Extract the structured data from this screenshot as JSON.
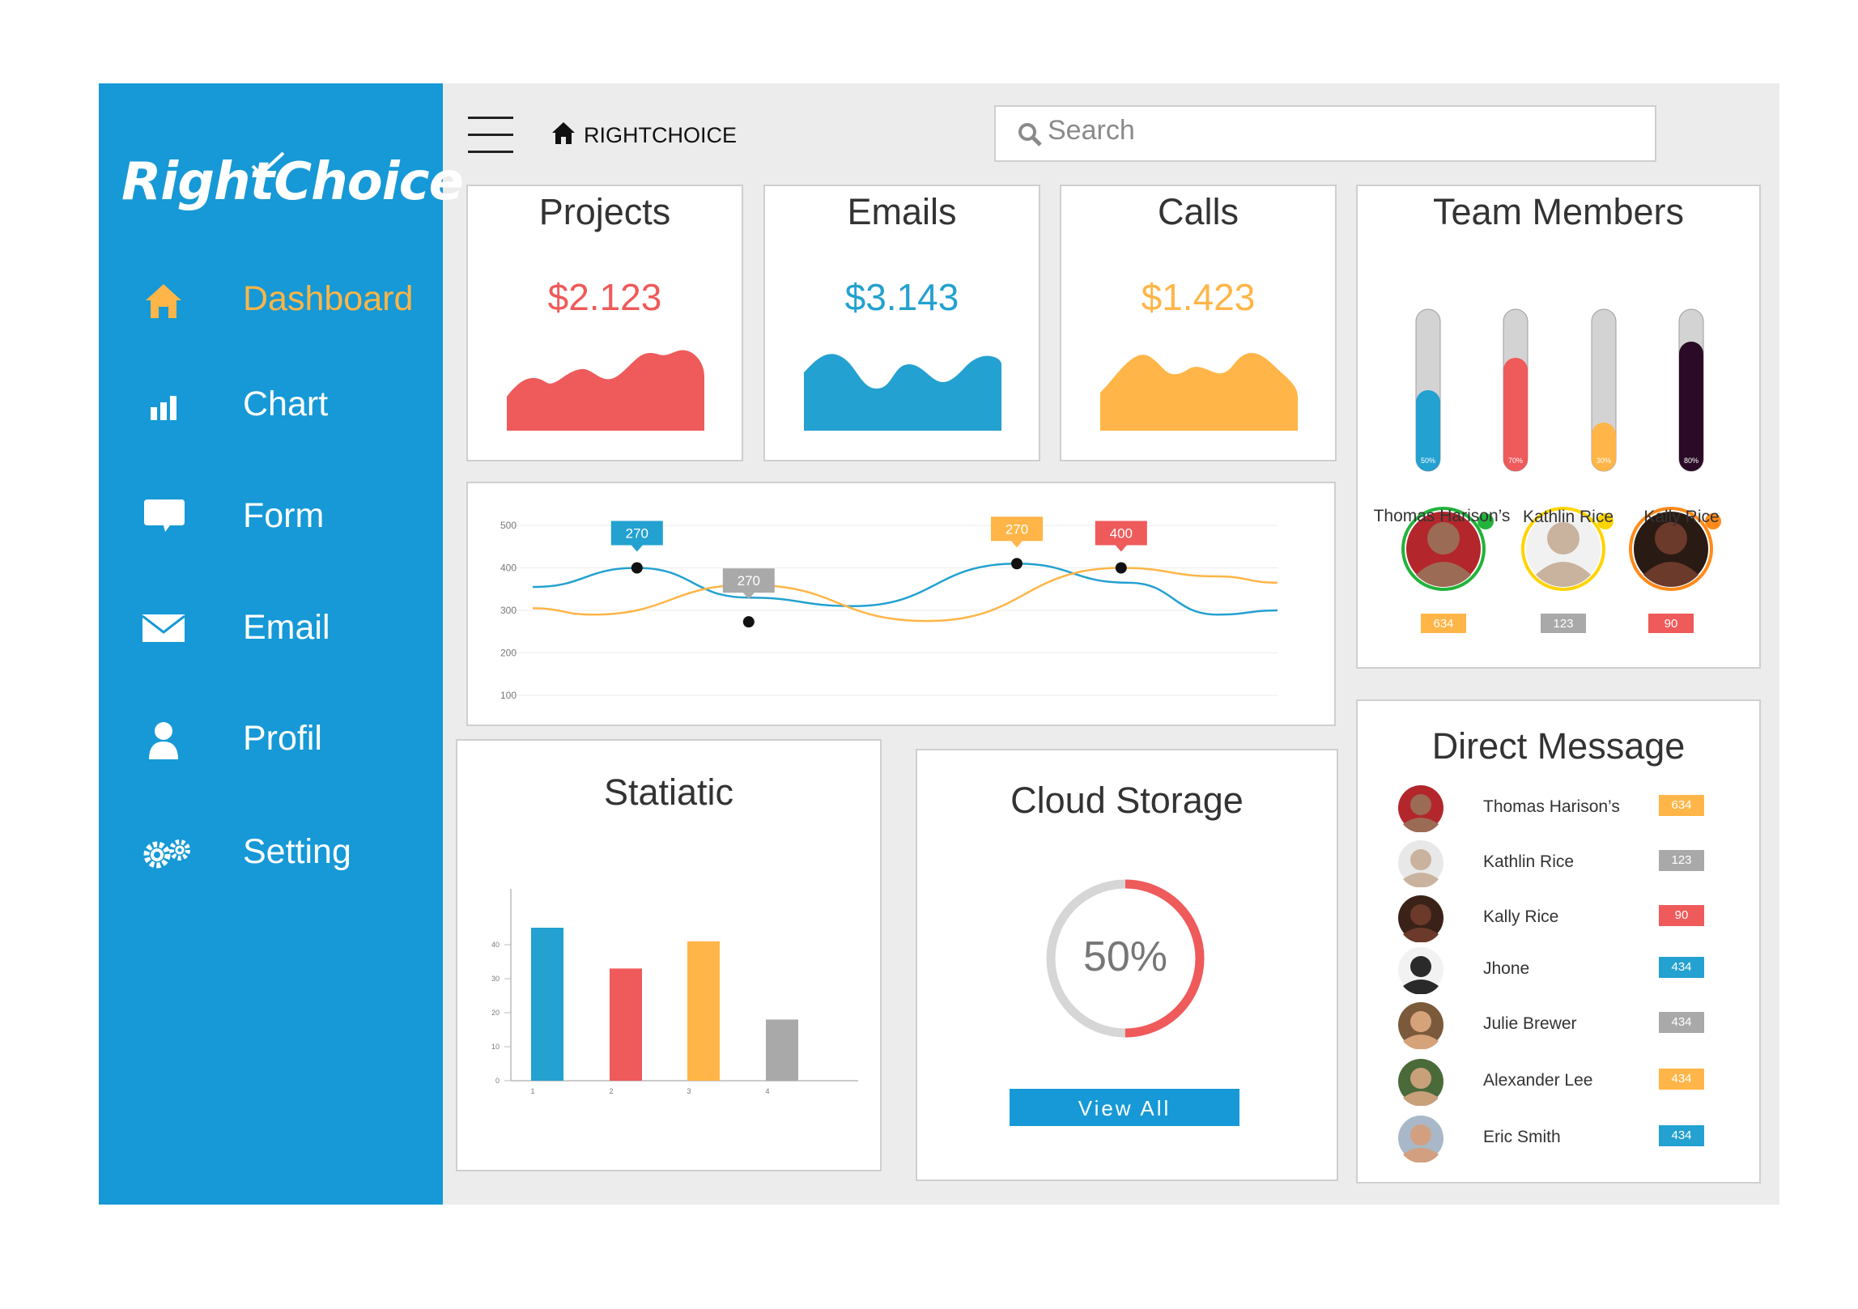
{
  "brand": {
    "logo": "RightChoice",
    "topbar_title": "RIGHTCHOICE"
  },
  "sidebar": {
    "items": [
      {
        "label": "Dashboard",
        "icon": "home-icon",
        "active": true
      },
      {
        "label": "Chart",
        "icon": "bar-chart-icon",
        "active": false
      },
      {
        "label": "Form",
        "icon": "speech-bubble-icon",
        "active": false
      },
      {
        "label": "Email",
        "icon": "envelope-icon",
        "active": false
      },
      {
        "label": "Profil",
        "icon": "user-icon",
        "active": false
      },
      {
        "label": "Setting",
        "icon": "gears-icon",
        "active": false
      }
    ]
  },
  "search": {
    "placeholder": "Search"
  },
  "stats": [
    {
      "title": "Projects",
      "value": "$2.123",
      "color": "#ef5a5a"
    },
    {
      "title": "Emails",
      "value": "$3.143",
      "color": "#23a1d0"
    },
    {
      "title": "Calls",
      "value": "$1.423",
      "color": "#ffb547"
    }
  ],
  "line_chart": {
    "chart_data": {
      "type": "line",
      "yticks": [
        "500",
        "400",
        "300",
        "200",
        "100"
      ],
      "ylim": [
        100,
        500
      ],
      "series": [
        {
          "color": "#23a1d0",
          "points": [
            [
              0,
              355
            ],
            [
              0.14,
              400
            ],
            [
              0.29,
              330
            ],
            [
              0.43,
              310
            ],
            [
              0.65,
              410
            ],
            [
              0.8,
              365
            ],
            [
              0.92,
              290
            ],
            [
              1.0,
              300
            ]
          ]
        },
        {
          "color": "#ffb547",
          "points": [
            [
              0,
              305
            ],
            [
              0.08,
              290
            ],
            [
              0.29,
              360
            ],
            [
              0.53,
              275
            ],
            [
              0.79,
              400
            ],
            [
              0.92,
              380
            ],
            [
              1.0,
              365
            ]
          ]
        }
      ],
      "callouts": [
        {
          "label": "270",
          "color": "#23a1d0"
        },
        {
          "label": "270",
          "color": "#a9a9a9"
        },
        {
          "label": "270",
          "color": "#ffb547"
        },
        {
          "label": "400",
          "color": "#ef5a5a"
        }
      ]
    }
  },
  "team": {
    "title": "Team Members",
    "bars": [
      {
        "level": "50%",
        "fraction": 0.5,
        "color": "#23a1d0"
      },
      {
        "level": "70%",
        "fraction": 0.7,
        "color": "#ef5a5a"
      },
      {
        "level": "30%",
        "fraction": 0.3,
        "color": "#ffb547"
      },
      {
        "level": "80%",
        "fraction": 0.8,
        "color": "#2a0a26"
      }
    ],
    "members": [
      {
        "name": "Thomas Harison’s",
        "count": "634",
        "ring": "#21b33a",
        "badge": "#ffb547"
      },
      {
        "name": "Kathlin Rice",
        "count": "123",
        "ring": "#ffd400",
        "badge": "#a9a9a9"
      },
      {
        "name": "Kally Rice",
        "count": "90",
        "ring": "#ff8a1a",
        "badge": "#ef5a5a"
      }
    ]
  },
  "statistic": {
    "title": "Statiatic",
    "chart_data": {
      "type": "bar",
      "categories": [
        "1",
        "2",
        "3",
        "4"
      ],
      "values": [
        45,
        33,
        41,
        18
      ],
      "colors": [
        "#23a1d0",
        "#ef5a5a",
        "#ffb547",
        "#a9a9a9"
      ],
      "yticks": [
        "40",
        "30",
        "20",
        "10",
        "0"
      ],
      "ylim": [
        0,
        50
      ]
    }
  },
  "cloud": {
    "title": "Cloud Storage",
    "percent_label": "50%",
    "fraction": 0.5,
    "button": "View All"
  },
  "direct_message": {
    "title": "Direct Message",
    "items": [
      {
        "name": "Thomas Harison’s",
        "count": "634",
        "color": "#ffb547"
      },
      {
        "name": "Kathlin Rice",
        "count": "123",
        "color": "#a9a9a9"
      },
      {
        "name": "Kally Rice",
        "count": "90",
        "color": "#ef5a5a"
      },
      {
        "name": "Jhone",
        "count": "434",
        "color": "#23a1d0"
      },
      {
        "name": "Julie Brewer",
        "count": "434",
        "color": "#a9a9a9"
      },
      {
        "name": "Alexander Lee",
        "count": "434",
        "color": "#ffb547"
      },
      {
        "name": "Eric Smith",
        "count": "434",
        "color": "#23a1d0"
      }
    ]
  }
}
